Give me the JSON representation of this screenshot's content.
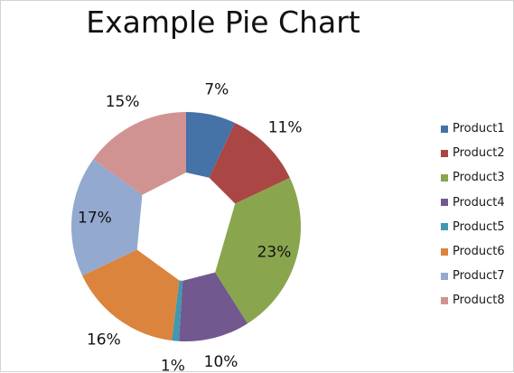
{
  "chart_data": {
    "type": "pie",
    "title": "Example Pie Chart",
    "exploded": true,
    "legend": "right",
    "start_angle_deg": 90,
    "direction": "clockwise",
    "categories": [
      "Product1",
      "Product2",
      "Product3",
      "Product4",
      "Product5",
      "Product6",
      "Product7",
      "Product8"
    ],
    "values": [
      7,
      11,
      23,
      10,
      1,
      16,
      17,
      15
    ],
    "data_labels": [
      "7%",
      "11%",
      "23%",
      "10%",
      "1%",
      "16%",
      "17%",
      "15%"
    ],
    "colors": [
      "#4572A7",
      "#AA4643",
      "#89A54E",
      "#71588F",
      "#4198AF",
      "#DB843D",
      "#93A9CF",
      "#D19392"
    ]
  }
}
